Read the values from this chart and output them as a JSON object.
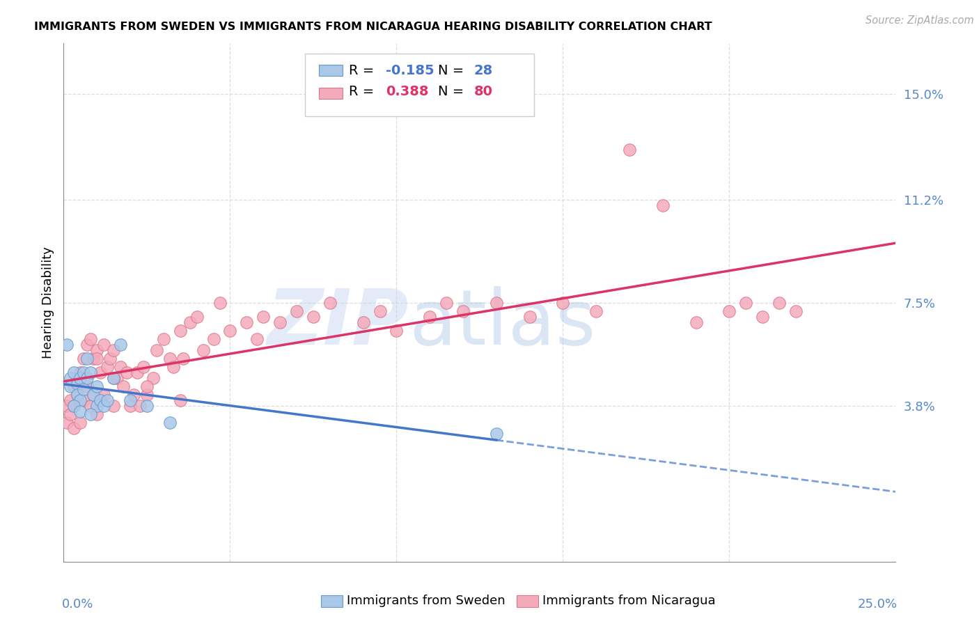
{
  "title": "IMMIGRANTS FROM SWEDEN VS IMMIGRANTS FROM NICARAGUA HEARING DISABILITY CORRELATION CHART",
  "source": "Source: ZipAtlas.com",
  "ylabel": "Hearing Disability",
  "ytick_labels": [
    "3.8%",
    "7.5%",
    "11.2%",
    "15.0%"
  ],
  "ytick_values": [
    0.038,
    0.075,
    0.112,
    0.15
  ],
  "xlim": [
    0.0,
    0.25
  ],
  "ylim": [
    -0.018,
    0.168
  ],
  "sweden_fill_color": "#aac8e8",
  "sweden_edge_color": "#6699cc",
  "nicaragua_fill_color": "#f4aabb",
  "nicaragua_edge_color": "#dd7788",
  "regression_sweden_color": "#4477cc",
  "regression_nicaragua_color": "#dd3366",
  "legend_r_sweden": "-0.185",
  "legend_n_sweden": "28",
  "legend_r_nicaragua": "0.388",
  "legend_n_nicaragua": "80",
  "watermark_zip": "ZIP",
  "watermark_atlas": "atlas",
  "grid_color": "#dddddd",
  "sweden_x": [
    0.001,
    0.002,
    0.002,
    0.003,
    0.004,
    0.004,
    0.005,
    0.005,
    0.006,
    0.006,
    0.007,
    0.007,
    0.008,
    0.009,
    0.01,
    0.01,
    0.011,
    0.012,
    0.013,
    0.015,
    0.017,
    0.02,
    0.025,
    0.032,
    0.13,
    0.003,
    0.005,
    0.008
  ],
  "sweden_y": [
    0.06,
    0.048,
    0.045,
    0.05,
    0.046,
    0.042,
    0.048,
    0.04,
    0.05,
    0.044,
    0.055,
    0.048,
    0.05,
    0.042,
    0.045,
    0.038,
    0.04,
    0.038,
    0.04,
    0.048,
    0.06,
    0.04,
    0.038,
    0.032,
    0.028,
    0.038,
    0.036,
    0.035
  ],
  "nicaragua_x": [
    0.001,
    0.001,
    0.002,
    0.002,
    0.003,
    0.003,
    0.003,
    0.004,
    0.004,
    0.005,
    0.005,
    0.006,
    0.006,
    0.007,
    0.007,
    0.008,
    0.008,
    0.009,
    0.009,
    0.01,
    0.01,
    0.011,
    0.012,
    0.012,
    0.013,
    0.014,
    0.015,
    0.015,
    0.016,
    0.017,
    0.018,
    0.019,
    0.02,
    0.021,
    0.022,
    0.023,
    0.024,
    0.025,
    0.027,
    0.028,
    0.03,
    0.032,
    0.033,
    0.035,
    0.036,
    0.038,
    0.04,
    0.042,
    0.045,
    0.047,
    0.05,
    0.055,
    0.058,
    0.06,
    0.065,
    0.07,
    0.075,
    0.08,
    0.09,
    0.095,
    0.1,
    0.11,
    0.115,
    0.12,
    0.13,
    0.14,
    0.15,
    0.16,
    0.17,
    0.18,
    0.19,
    0.2,
    0.205,
    0.21,
    0.215,
    0.22,
    0.01,
    0.015,
    0.025,
    0.035
  ],
  "nicaragua_y": [
    0.038,
    0.032,
    0.04,
    0.035,
    0.045,
    0.038,
    0.03,
    0.048,
    0.042,
    0.05,
    0.032,
    0.055,
    0.04,
    0.06,
    0.045,
    0.062,
    0.038,
    0.055,
    0.042,
    0.058,
    0.035,
    0.05,
    0.06,
    0.042,
    0.052,
    0.055,
    0.058,
    0.038,
    0.048,
    0.052,
    0.045,
    0.05,
    0.038,
    0.042,
    0.05,
    0.038,
    0.052,
    0.042,
    0.048,
    0.058,
    0.062,
    0.055,
    0.052,
    0.065,
    0.055,
    0.068,
    0.07,
    0.058,
    0.062,
    0.075,
    0.065,
    0.068,
    0.062,
    0.07,
    0.068,
    0.072,
    0.07,
    0.075,
    0.068,
    0.072,
    0.065,
    0.07,
    0.075,
    0.072,
    0.075,
    0.07,
    0.075,
    0.072,
    0.13,
    0.11,
    0.068,
    0.072,
    0.075,
    0.07,
    0.075,
    0.072,
    0.055,
    0.048,
    0.045,
    0.04
  ]
}
